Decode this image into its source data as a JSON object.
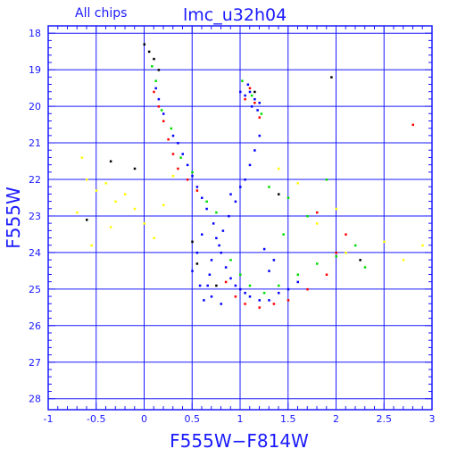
{
  "header": {
    "left_label": "All chips",
    "title": "lmc_u32h04"
  },
  "chart_data": {
    "type": "scatter",
    "title": "lmc_u32h04",
    "subtitle": "All chips",
    "xlabel": "F555W−F814W",
    "ylabel": "F555W",
    "xlim": [
      -1,
      3
    ],
    "ylim": [
      28.3,
      17.8
    ],
    "y_inverted": true,
    "grid": true,
    "x_major_ticks": [
      -1,
      -0.5,
      0,
      0.5,
      1,
      1.5,
      2,
      2.5,
      3
    ],
    "x_tick_labels": [
      "-1",
      "-0.5",
      "0",
      "0.5",
      "1",
      "1.5",
      "2",
      "2.5",
      "3"
    ],
    "y_major_ticks": [
      18,
      19,
      20,
      21,
      22,
      23,
      24,
      25,
      26,
      27,
      28
    ],
    "y_tick_labels": [
      "18",
      "19",
      "20",
      "21",
      "22",
      "23",
      "24",
      "25",
      "26",
      "27",
      "28"
    ],
    "colors": {
      "axis": "#1a1aff",
      "grid": "#1a1aff",
      "points": [
        "#0000ff",
        "#ff0000",
        "#00dd00",
        "#ffff00",
        "#000000"
      ]
    },
    "point_size_note": "small square dots",
    "series": [
      {
        "color": "#0000ff",
        "points": [
          [
            0.72,
            23.2
          ],
          [
            0.75,
            23.6
          ],
          [
            0.8,
            24.0
          ],
          [
            0.85,
            24.4
          ],
          [
            0.9,
            24.7
          ],
          [
            0.95,
            24.9
          ],
          [
            1.0,
            25.0
          ],
          [
            1.05,
            25.1
          ],
          [
            1.1,
            25.2
          ],
          [
            1.2,
            25.3
          ],
          [
            1.3,
            25.3
          ],
          [
            1.4,
            25.1
          ],
          [
            0.65,
            22.8
          ],
          [
            0.6,
            22.5
          ],
          [
            0.55,
            22.2
          ],
          [
            0.5,
            21.9
          ],
          [
            0.45,
            21.6
          ],
          [
            0.4,
            21.3
          ],
          [
            0.35,
            21.0
          ],
          [
            0.3,
            20.8
          ],
          [
            0.2,
            20.2
          ],
          [
            0.15,
            19.8
          ],
          [
            0.12,
            19.5
          ],
          [
            1.0,
            19.6
          ],
          [
            1.05,
            19.7
          ],
          [
            1.1,
            19.6
          ],
          [
            1.15,
            19.8
          ],
          [
            1.2,
            19.9
          ],
          [
            1.08,
            19.4
          ],
          [
            1.12,
            20.0
          ],
          [
            1.18,
            20.1
          ],
          [
            0.9,
            22.4
          ],
          [
            0.95,
            22.6
          ],
          [
            1.0,
            22.2
          ],
          [
            1.05,
            22.0
          ],
          [
            1.1,
            21.6
          ],
          [
            1.15,
            21.2
          ],
          [
            1.2,
            20.8
          ],
          [
            0.88,
            23.0
          ],
          [
            0.82,
            23.4
          ],
          [
            0.78,
            23.8
          ],
          [
            0.7,
            24.2
          ],
          [
            0.68,
            24.6
          ],
          [
            0.66,
            24.9
          ],
          [
            0.7,
            25.2
          ],
          [
            0.8,
            25.4
          ],
          [
            1.5,
            25.0
          ],
          [
            1.6,
            24.8
          ],
          [
            1.3,
            24.5
          ],
          [
            1.35,
            24.2
          ],
          [
            1.25,
            23.9
          ],
          [
            0.6,
            23.5
          ],
          [
            0.55,
            24.0
          ],
          [
            0.5,
            24.5
          ],
          [
            0.58,
            24.9
          ],
          [
            0.62,
            25.3
          ]
        ]
      },
      {
        "color": "#ff0000",
        "points": [
          [
            0.1,
            19.6
          ],
          [
            0.15,
            20.0
          ],
          [
            0.2,
            20.4
          ],
          [
            0.25,
            20.9
          ],
          [
            0.3,
            21.3
          ],
          [
            0.35,
            21.7
          ],
          [
            0.45,
            22.0
          ],
          [
            0.55,
            22.3
          ],
          [
            1.05,
            19.8
          ],
          [
            1.1,
            19.5
          ],
          [
            1.15,
            19.9
          ],
          [
            1.2,
            20.3
          ],
          [
            0.85,
            24.8
          ],
          [
            0.95,
            25.2
          ],
          [
            1.05,
            25.4
          ],
          [
            1.2,
            25.5
          ],
          [
            1.35,
            25.4
          ],
          [
            1.5,
            25.3
          ],
          [
            1.7,
            25.0
          ],
          [
            1.9,
            24.6
          ],
          [
            2.1,
            23.5
          ],
          [
            2.8,
            20.5
          ],
          [
            1.8,
            22.9
          ],
          [
            2.0,
            24.0
          ]
        ]
      },
      {
        "color": "#00dd00",
        "points": [
          [
            0.08,
            18.9
          ],
          [
            0.12,
            19.3
          ],
          [
            0.18,
            20.1
          ],
          [
            0.28,
            20.6
          ],
          [
            0.38,
            21.4
          ],
          [
            0.5,
            21.8
          ],
          [
            0.65,
            22.6
          ],
          [
            0.75,
            22.9
          ],
          [
            1.02,
            19.3
          ],
          [
            1.12,
            19.7
          ],
          [
            1.22,
            20.2
          ],
          [
            0.9,
            24.2
          ],
          [
            1.0,
            24.6
          ],
          [
            1.1,
            24.9
          ],
          [
            1.25,
            25.1
          ],
          [
            1.4,
            24.9
          ],
          [
            1.6,
            24.6
          ],
          [
            1.8,
            24.3
          ],
          [
            2.0,
            24.1
          ],
          [
            2.2,
            23.8
          ],
          [
            1.3,
            22.2
          ],
          [
            1.5,
            22.5
          ],
          [
            1.7,
            23.0
          ],
          [
            1.9,
            22.0
          ],
          [
            2.3,
            24.4
          ],
          [
            1.45,
            23.5
          ]
        ]
      },
      {
        "color": "#ffff00",
        "points": [
          [
            -0.6,
            22.0
          ],
          [
            -0.5,
            22.3
          ],
          [
            -0.4,
            22.1
          ],
          [
            -0.3,
            22.6
          ],
          [
            -0.2,
            22.4
          ],
          [
            -0.1,
            22.8
          ],
          [
            0.0,
            23.2
          ],
          [
            0.1,
            23.6
          ],
          [
            -0.65,
            21.4
          ],
          [
            -0.7,
            22.9
          ],
          [
            -0.55,
            23.8
          ],
          [
            -0.35,
            23.3
          ],
          [
            0.3,
            21.9
          ],
          [
            1.6,
            22.1
          ],
          [
            1.8,
            23.2
          ],
          [
            2.0,
            22.8
          ],
          [
            2.1,
            24.0
          ],
          [
            2.5,
            23.7
          ],
          [
            2.9,
            23.8
          ],
          [
            2.7,
            24.2
          ],
          [
            1.4,
            21.7
          ],
          [
            0.2,
            22.7
          ]
        ]
      },
      {
        "color": "#000000",
        "points": [
          [
            0.0,
            18.3
          ],
          [
            0.05,
            18.5
          ],
          [
            0.1,
            18.7
          ],
          [
            0.15,
            19.0
          ],
          [
            -0.35,
            21.5
          ],
          [
            -0.6,
            23.1
          ],
          [
            0.5,
            23.7
          ],
          [
            0.55,
            24.3
          ],
          [
            1.95,
            19.2
          ],
          [
            1.15,
            19.6
          ],
          [
            0.75,
            24.9
          ],
          [
            1.4,
            22.4
          ],
          [
            -0.1,
            21.7
          ],
          [
            2.25,
            24.2
          ]
        ]
      }
    ]
  }
}
